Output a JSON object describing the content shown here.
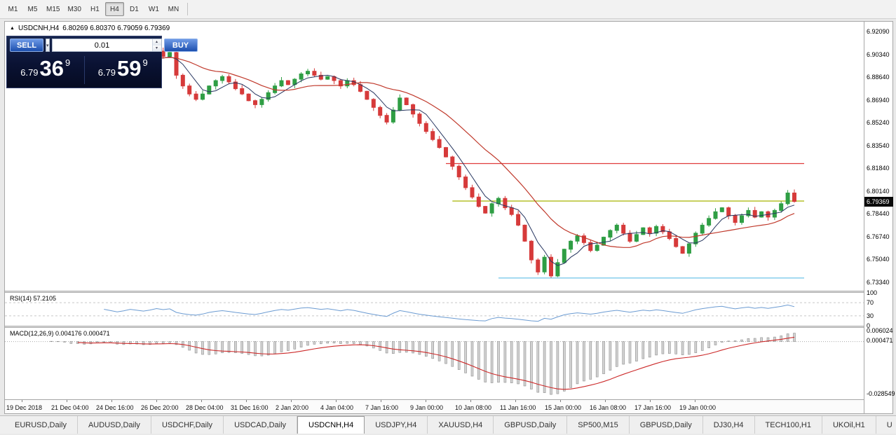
{
  "toolbar": {
    "timeframes": [
      "M1",
      "M5",
      "M15",
      "M30",
      "H1",
      "H4",
      "D1",
      "W1",
      "MN"
    ],
    "active": "H4"
  },
  "chart": {
    "title_symbol": "USDCNH,H4",
    "title_ohlc": "6.80269 6.80370 6.79059 6.79369",
    "current_price": "6.79369"
  },
  "trade_panel": {
    "sell_label": "SELL",
    "buy_label": "BUY",
    "volume": "0.01",
    "sell_price_prefix": "6.79",
    "sell_price_big": "36",
    "sell_price_sup": "9",
    "buy_price_prefix": "6.79",
    "buy_price_big": "59",
    "buy_price_sup": "9"
  },
  "icons": {
    "title_marker": "▲",
    "dropdown_arrow": "▾",
    "spinner_up": "▴",
    "spinner_down": "▾"
  },
  "indicators": {
    "rsi": {
      "label": "RSI(14) 57.2105",
      "scale": [
        {
          "v": 100,
          "t": "100"
        },
        {
          "v": 70,
          "t": "70"
        },
        {
          "v": 30,
          "t": "30"
        },
        {
          "v": 0,
          "t": "0"
        }
      ]
    },
    "macd": {
      "label": "MACD(12,26,9) 0.004176 0.000471",
      "scale": [
        {
          "v": 0.006024,
          "t": "0.006024"
        },
        {
          "v": 0.000471,
          "t": "0.000471"
        },
        {
          "v": -0.028549,
          "t": "-0.028549"
        }
      ]
    }
  },
  "tabs": {
    "items": [
      "EURUSD,Daily",
      "AUDUSD,Daily",
      "USDCHF,Daily",
      "USDCAD,Daily",
      "USDCNH,H4",
      "USDJPY,H4",
      "XAUUSD,H4",
      "GBPUSD,Daily",
      "SP500,M15",
      "GBPUSD,Daily",
      "DJ30,H4",
      "TECH100,H1",
      "UKOil,H1",
      "U"
    ],
    "active_index": 4
  },
  "chart_data": {
    "type": "candlestick",
    "symbol": "USDCNH",
    "period": "H4",
    "ohlc_current": {
      "open": 6.80269,
      "high": 6.8037,
      "low": 6.79059,
      "close": 6.79369
    },
    "price_min": 6.727,
    "price_max": 6.928,
    "y_ticks": [
      "6.92090",
      "6.90340",
      "6.88640",
      "6.86940",
      "6.85240",
      "6.83540",
      "6.81840",
      "6.80140",
      "6.78440",
      "6.76740",
      "6.75040",
      "6.73340"
    ],
    "x_labels": [
      "19 Dec 2018",
      "21 Dec 04:00",
      "24 Dec 16:00",
      "26 Dec 20:00",
      "28 Dec 04:00",
      "31 Dec 16:00",
      "2 Jan 20:00",
      "4 Jan 04:00",
      "7 Jan 16:00",
      "9 Jan 00:00",
      "10 Jan 08:00",
      "11 Jan 16:00",
      "15 Jan 00:00",
      "16 Jan 08:00",
      "17 Jan 16:00",
      "19 Jan 00:00"
    ],
    "closes": [
      6.906,
      6.91,
      6.904,
      6.898,
      6.902,
      6.908,
      6.912,
      6.906,
      6.9,
      6.896,
      6.902,
      6.898,
      6.904,
      6.91,
      6.906,
      6.9,
      6.894,
      6.898,
      6.904,
      6.9,
      6.896,
      6.9,
      6.906,
      6.902,
      6.905,
      6.888,
      6.88,
      6.874,
      6.87,
      6.874,
      6.88,
      6.884,
      6.887,
      6.883,
      6.878,
      6.874,
      6.869,
      6.866,
      6.87,
      6.875,
      6.88,
      6.884,
      6.881,
      6.885,
      6.889,
      6.891,
      6.888,
      6.885,
      6.887,
      6.884,
      6.88,
      6.884,
      6.881,
      6.876,
      6.87,
      6.864,
      6.858,
      6.853,
      6.862,
      6.871,
      6.866,
      6.859,
      6.852,
      6.846,
      6.84,
      6.834,
      6.827,
      6.82,
      6.812,
      6.804,
      6.797,
      6.79,
      6.785,
      6.792,
      6.796,
      6.789,
      6.784,
      6.776,
      6.764,
      6.75,
      6.741,
      6.752,
      6.738,
      6.748,
      6.758,
      6.764,
      6.768,
      6.763,
      6.757,
      6.761,
      6.767,
      6.772,
      6.776,
      6.77,
      6.764,
      6.769,
      6.774,
      6.77,
      6.775,
      6.771,
      6.766,
      6.76,
      6.755,
      6.762,
      6.77,
      6.776,
      6.781,
      6.786,
      6.789,
      6.783,
      6.778,
      6.783,
      6.787,
      6.782,
      6.786,
      6.782,
      6.787,
      6.792,
      6.8,
      6.79369
    ],
    "ma_fast": 5,
    "ma_slow": 16,
    "rsi_period": 14,
    "macd": {
      "fast": 12,
      "slow": 26,
      "signal": 9,
      "vmin": -0.0315,
      "vmax": 0.0075
    },
    "hlines": [
      {
        "price": 6.822,
        "start_index": 66,
        "color_key": "hline_red"
      },
      {
        "price": 6.794,
        "start_index": 67,
        "color_key": "hline_olive"
      },
      {
        "price": 6.7365,
        "start_index": 74,
        "color_key": "hline_blue"
      }
    ],
    "colors": {
      "up": "#2f9e44",
      "down": "#d63a3a",
      "ma_fast": "#26355f",
      "ma_slow": "#c0392b",
      "rsi": "#6b9bd2",
      "macd_signal": "#cc2929",
      "hline_red": "#e03c3c",
      "hline_olive": "#a8b400",
      "hline_blue": "#6fc4e8"
    }
  }
}
